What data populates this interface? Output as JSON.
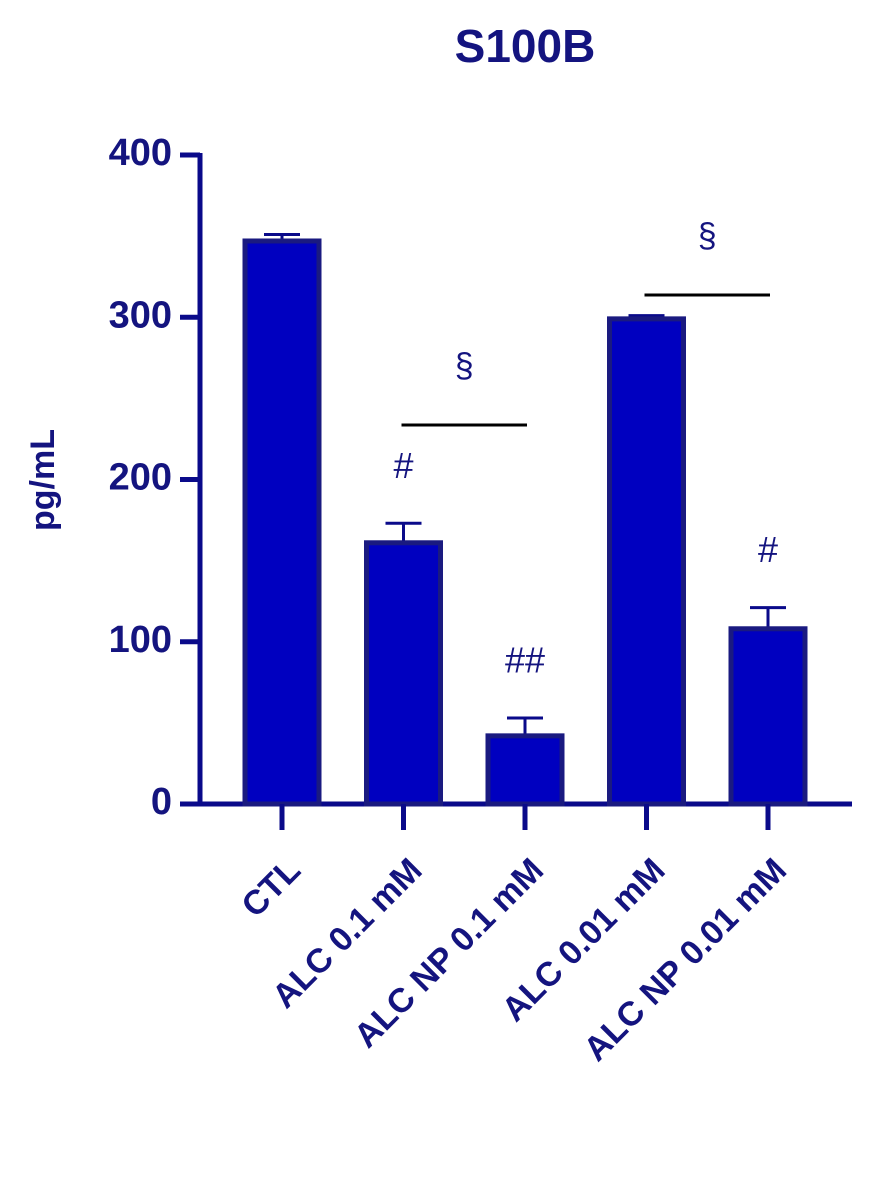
{
  "chart_data": {
    "type": "bar",
    "title": "S100B",
    "y_label": "pg/mL",
    "categories": [
      "CTL",
      "ALC 0.1 mM",
      "ALC NP 0.1 mM",
      "ALC 0.01 mM",
      "ALC NP 0.01 mM"
    ],
    "values": [
      347,
      161,
      42,
      299,
      108
    ],
    "errors": [
      4,
      12,
      11,
      2,
      13
    ],
    "markers": [
      null,
      "#",
      "##",
      null,
      "#"
    ],
    "brackets": [
      {
        "label": "§",
        "from": "ALC 0.1 mM",
        "to": "ALC NP 0.1 mM"
      },
      {
        "label": "§",
        "from": "ALC 0.01 mM",
        "to": "ALC NP 0.01 mM"
      }
    ],
    "color": "#0000c0",
    "ylim": [
      0,
      400
    ],
    "yticks": [
      0,
      100,
      200,
      300,
      400
    ]
  }
}
